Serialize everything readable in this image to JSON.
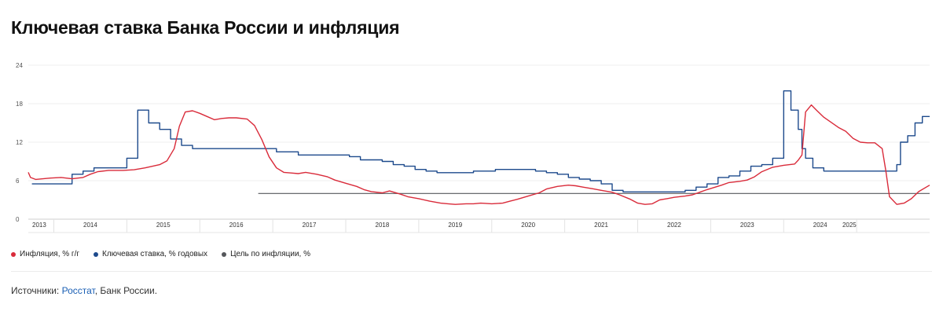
{
  "chart_data": {
    "type": "line",
    "title": "Ключевая ставка Банка России и инфляция",
    "ylim": [
      0,
      24
    ],
    "yticks": [
      0,
      6,
      12,
      18,
      24
    ],
    "xlim": [
      2013.0,
      2025.35
    ],
    "year_labels": [
      {
        "x": 2013.15,
        "label": "2013"
      },
      {
        "x": 2013.85,
        "label": "2014"
      },
      {
        "x": 2014.85,
        "label": "2015"
      },
      {
        "x": 2015.85,
        "label": "2016"
      },
      {
        "x": 2016.85,
        "label": "2017"
      },
      {
        "x": 2017.85,
        "label": "2018"
      },
      {
        "x": 2018.85,
        "label": "2019"
      },
      {
        "x": 2019.85,
        "label": "2020"
      },
      {
        "x": 2020.85,
        "label": "2021"
      },
      {
        "x": 2021.85,
        "label": "2022"
      },
      {
        "x": 2022.85,
        "label": "2023"
      },
      {
        "x": 2023.85,
        "label": "2024"
      },
      {
        "x": 2024.25,
        "label": "2025"
      }
    ],
    "year_separators": [
      2013.35,
      2014.35,
      2015.35,
      2016.35,
      2017.35,
      2018.35,
      2019.35,
      2020.35,
      2021.35,
      2022.35,
      2023.35,
      2024.35
    ],
    "series": [
      {
        "name": "Инфляция, % г/г",
        "color": "#d92b3a",
        "points": [
          [
            2013.0,
            7.3
          ],
          [
            2013.03,
            6.5
          ],
          [
            2013.1,
            6.2
          ],
          [
            2013.3,
            6.4
          ],
          [
            2013.45,
            6.5
          ],
          [
            2013.6,
            6.3
          ],
          [
            2013.75,
            6.5
          ],
          [
            2013.85,
            7.0
          ],
          [
            2013.95,
            7.4
          ],
          [
            2014.1,
            7.6
          ],
          [
            2014.3,
            7.6
          ],
          [
            2014.45,
            7.7
          ],
          [
            2014.6,
            8.0
          ],
          [
            2014.8,
            8.5
          ],
          [
            2014.9,
            9.1
          ],
          [
            2015.0,
            11.0
          ],
          [
            2015.07,
            14.5
          ],
          [
            2015.15,
            16.7
          ],
          [
            2015.25,
            16.9
          ],
          [
            2015.35,
            16.5
          ],
          [
            2015.45,
            16.0
          ],
          [
            2015.55,
            15.5
          ],
          [
            2015.65,
            15.7
          ],
          [
            2015.75,
            15.8
          ],
          [
            2015.85,
            15.8
          ],
          [
            2016.0,
            15.6
          ],
          [
            2016.1,
            14.6
          ],
          [
            2016.2,
            12.4
          ],
          [
            2016.3,
            9.7
          ],
          [
            2016.4,
            8.0
          ],
          [
            2016.5,
            7.3
          ],
          [
            2016.6,
            7.2
          ],
          [
            2016.7,
            7.1
          ],
          [
            2016.8,
            7.3
          ],
          [
            2016.95,
            7.0
          ],
          [
            2017.1,
            6.6
          ],
          [
            2017.2,
            6.1
          ],
          [
            2017.35,
            5.6
          ],
          [
            2017.5,
            5.1
          ],
          [
            2017.6,
            4.6
          ],
          [
            2017.7,
            4.3
          ],
          [
            2017.85,
            4.1
          ],
          [
            2017.95,
            4.4
          ],
          [
            2018.1,
            3.9
          ],
          [
            2018.2,
            3.5
          ],
          [
            2018.35,
            3.2
          ],
          [
            2018.5,
            2.8
          ],
          [
            2018.65,
            2.5
          ],
          [
            2018.75,
            2.4
          ],
          [
            2018.85,
            2.3
          ],
          [
            2019.0,
            2.4
          ],
          [
            2019.1,
            2.4
          ],
          [
            2019.2,
            2.5
          ],
          [
            2019.35,
            2.4
          ],
          [
            2019.5,
            2.5
          ],
          [
            2019.6,
            2.8
          ],
          [
            2019.7,
            3.1
          ],
          [
            2019.85,
            3.6
          ],
          [
            2020.0,
            4.1
          ],
          [
            2020.1,
            4.7
          ],
          [
            2020.25,
            5.1
          ],
          [
            2020.4,
            5.3
          ],
          [
            2020.5,
            5.2
          ],
          [
            2020.6,
            5.0
          ],
          [
            2020.75,
            4.7
          ],
          [
            2020.85,
            4.5
          ],
          [
            2021.0,
            4.2
          ],
          [
            2021.1,
            3.8
          ],
          [
            2021.25,
            3.1
          ],
          [
            2021.35,
            2.5
          ],
          [
            2021.45,
            2.3
          ],
          [
            2021.55,
            2.4
          ],
          [
            2021.65,
            3.0
          ],
          [
            2021.75,
            3.2
          ],
          [
            2021.85,
            3.4
          ],
          [
            2022.0,
            3.6
          ],
          [
            2022.1,
            3.8
          ],
          [
            2022.2,
            4.2
          ],
          [
            2022.3,
            4.6
          ],
          [
            2022.5,
            5.3
          ],
          [
            2022.6,
            5.7
          ],
          [
            2022.75,
            5.9
          ],
          [
            2022.85,
            6.1
          ],
          [
            2022.95,
            6.6
          ],
          [
            2023.05,
            7.4
          ],
          [
            2023.2,
            8.1
          ],
          [
            2023.35,
            8.4
          ],
          [
            2023.5,
            8.6
          ],
          [
            2023.55,
            9.2
          ],
          [
            2023.6,
            10.0
          ],
          [
            2023.65,
            16.7
          ],
          [
            2023.73,
            17.8
          ],
          [
            2023.8,
            17.0
          ],
          [
            2023.9,
            15.9
          ],
          [
            2024.0,
            15.1
          ],
          [
            2024.1,
            14.3
          ],
          [
            2024.2,
            13.7
          ],
          [
            2024.3,
            12.6
          ],
          [
            2024.4,
            12.0
          ],
          [
            2024.5,
            11.9
          ],
          [
            2024.6,
            11.9
          ],
          [
            2024.7,
            11.0
          ],
          [
            2024.75,
            7.5
          ],
          [
            2024.8,
            3.5
          ],
          [
            2024.9,
            2.3
          ],
          [
            2025.0,
            2.5
          ],
          [
            2025.1,
            3.2
          ],
          [
            2025.2,
            4.3
          ],
          [
            2025.35,
            5.3
          ]
        ]
      },
      {
        "name": "Ключевая ставка, % годовых",
        "color": "#1d4a8c",
        "points": [
          [
            2013.05,
            5.5
          ],
          [
            2013.6,
            5.5
          ],
          [
            2013.6,
            7.0
          ],
          [
            2013.75,
            7.0
          ],
          [
            2013.75,
            7.5
          ],
          [
            2013.9,
            7.5
          ],
          [
            2013.9,
            8.0
          ],
          [
            2014.05,
            8.0
          ],
          [
            2014.05,
            8.0
          ],
          [
            2014.35,
            8.0
          ],
          [
            2014.35,
            9.5
          ],
          [
            2014.5,
            9.5
          ],
          [
            2014.5,
            17.0
          ],
          [
            2014.65,
            17.0
          ],
          [
            2014.65,
            15.0
          ],
          [
            2014.8,
            15.0
          ],
          [
            2014.8,
            14.0
          ],
          [
            2014.95,
            14.0
          ],
          [
            2014.95,
            12.5
          ],
          [
            2015.1,
            12.5
          ],
          [
            2015.1,
            11.5
          ],
          [
            2015.25,
            11.5
          ],
          [
            2015.25,
            11.0
          ],
          [
            2016.4,
            11.0
          ],
          [
            2016.4,
            10.5
          ],
          [
            2016.7,
            10.5
          ],
          [
            2016.7,
            10.0
          ],
          [
            2017.4,
            10.0
          ],
          [
            2017.4,
            9.75
          ],
          [
            2017.55,
            9.75
          ],
          [
            2017.55,
            9.25
          ],
          [
            2017.85,
            9.25
          ],
          [
            2017.85,
            9.0
          ],
          [
            2018.0,
            9.0
          ],
          [
            2018.0,
            8.5
          ],
          [
            2018.15,
            8.5
          ],
          [
            2018.15,
            8.25
          ],
          [
            2018.3,
            8.25
          ],
          [
            2018.3,
            7.75
          ],
          [
            2018.45,
            7.75
          ],
          [
            2018.45,
            7.5
          ],
          [
            2018.6,
            7.5
          ],
          [
            2018.6,
            7.25
          ],
          [
            2019.1,
            7.25
          ],
          [
            2019.1,
            7.5
          ],
          [
            2019.4,
            7.5
          ],
          [
            2019.4,
            7.75
          ],
          [
            2019.95,
            7.75
          ],
          [
            2019.95,
            7.5
          ],
          [
            2020.1,
            7.5
          ],
          [
            2020.1,
            7.25
          ],
          [
            2020.25,
            7.25
          ],
          [
            2020.25,
            7.0
          ],
          [
            2020.4,
            7.0
          ],
          [
            2020.4,
            6.5
          ],
          [
            2020.55,
            6.5
          ],
          [
            2020.55,
            6.25
          ],
          [
            2020.7,
            6.25
          ],
          [
            2020.7,
            6.0
          ],
          [
            2020.85,
            6.0
          ],
          [
            2020.85,
            5.5
          ],
          [
            2021.0,
            5.5
          ],
          [
            2021.0,
            4.5
          ],
          [
            2021.15,
            4.5
          ],
          [
            2021.15,
            4.25
          ],
          [
            2022.0,
            4.25
          ],
          [
            2022.0,
            4.5
          ],
          [
            2022.15,
            4.5
          ],
          [
            2022.15,
            5.0
          ],
          [
            2022.3,
            5.0
          ],
          [
            2022.3,
            5.5
          ],
          [
            2022.45,
            5.5
          ],
          [
            2022.45,
            6.5
          ],
          [
            2022.6,
            6.5
          ],
          [
            2022.6,
            6.75
          ],
          [
            2022.75,
            6.75
          ],
          [
            2022.75,
            7.5
          ],
          [
            2022.9,
            7.5
          ],
          [
            2022.9,
            8.25
          ],
          [
            2023.05,
            8.25
          ],
          [
            2023.05,
            8.5
          ],
          [
            2023.2,
            8.5
          ],
          [
            2023.2,
            9.5
          ],
          [
            2023.35,
            9.5
          ],
          [
            2023.35,
            20.0
          ],
          [
            2023.45,
            20.0
          ],
          [
            2023.45,
            17.0
          ],
          [
            2023.55,
            17.0
          ],
          [
            2023.55,
            14.0
          ],
          [
            2023.6,
            14.0
          ],
          [
            2023.6,
            11.0
          ],
          [
            2023.65,
            11.0
          ],
          [
            2023.65,
            9.5
          ],
          [
            2023.75,
            9.5
          ],
          [
            2023.75,
            8.0
          ],
          [
            2023.9,
            8.0
          ],
          [
            2023.9,
            7.5
          ],
          [
            2024.9,
            7.5
          ],
          [
            2024.9,
            8.5
          ],
          [
            2024.95,
            8.5
          ],
          [
            2024.95,
            12.0
          ],
          [
            2025.05,
            12.0
          ],
          [
            2025.05,
            13.0
          ],
          [
            2025.15,
            13.0
          ],
          [
            2025.15,
            15.0
          ],
          [
            2025.25,
            15.0
          ],
          [
            2025.25,
            16.0
          ],
          [
            2025.35,
            16.0
          ]
        ]
      },
      {
        "name": "Цель по инфляции, %",
        "color": "#55575b",
        "points": [
          [
            2016.15,
            4.0
          ],
          [
            2025.35,
            4.0
          ]
        ]
      }
    ],
    "legend": "bottom-left"
  },
  "source": {
    "prefix": "Источники: ",
    "link_text": "Росстат",
    "suffix": ", Банк России."
  }
}
